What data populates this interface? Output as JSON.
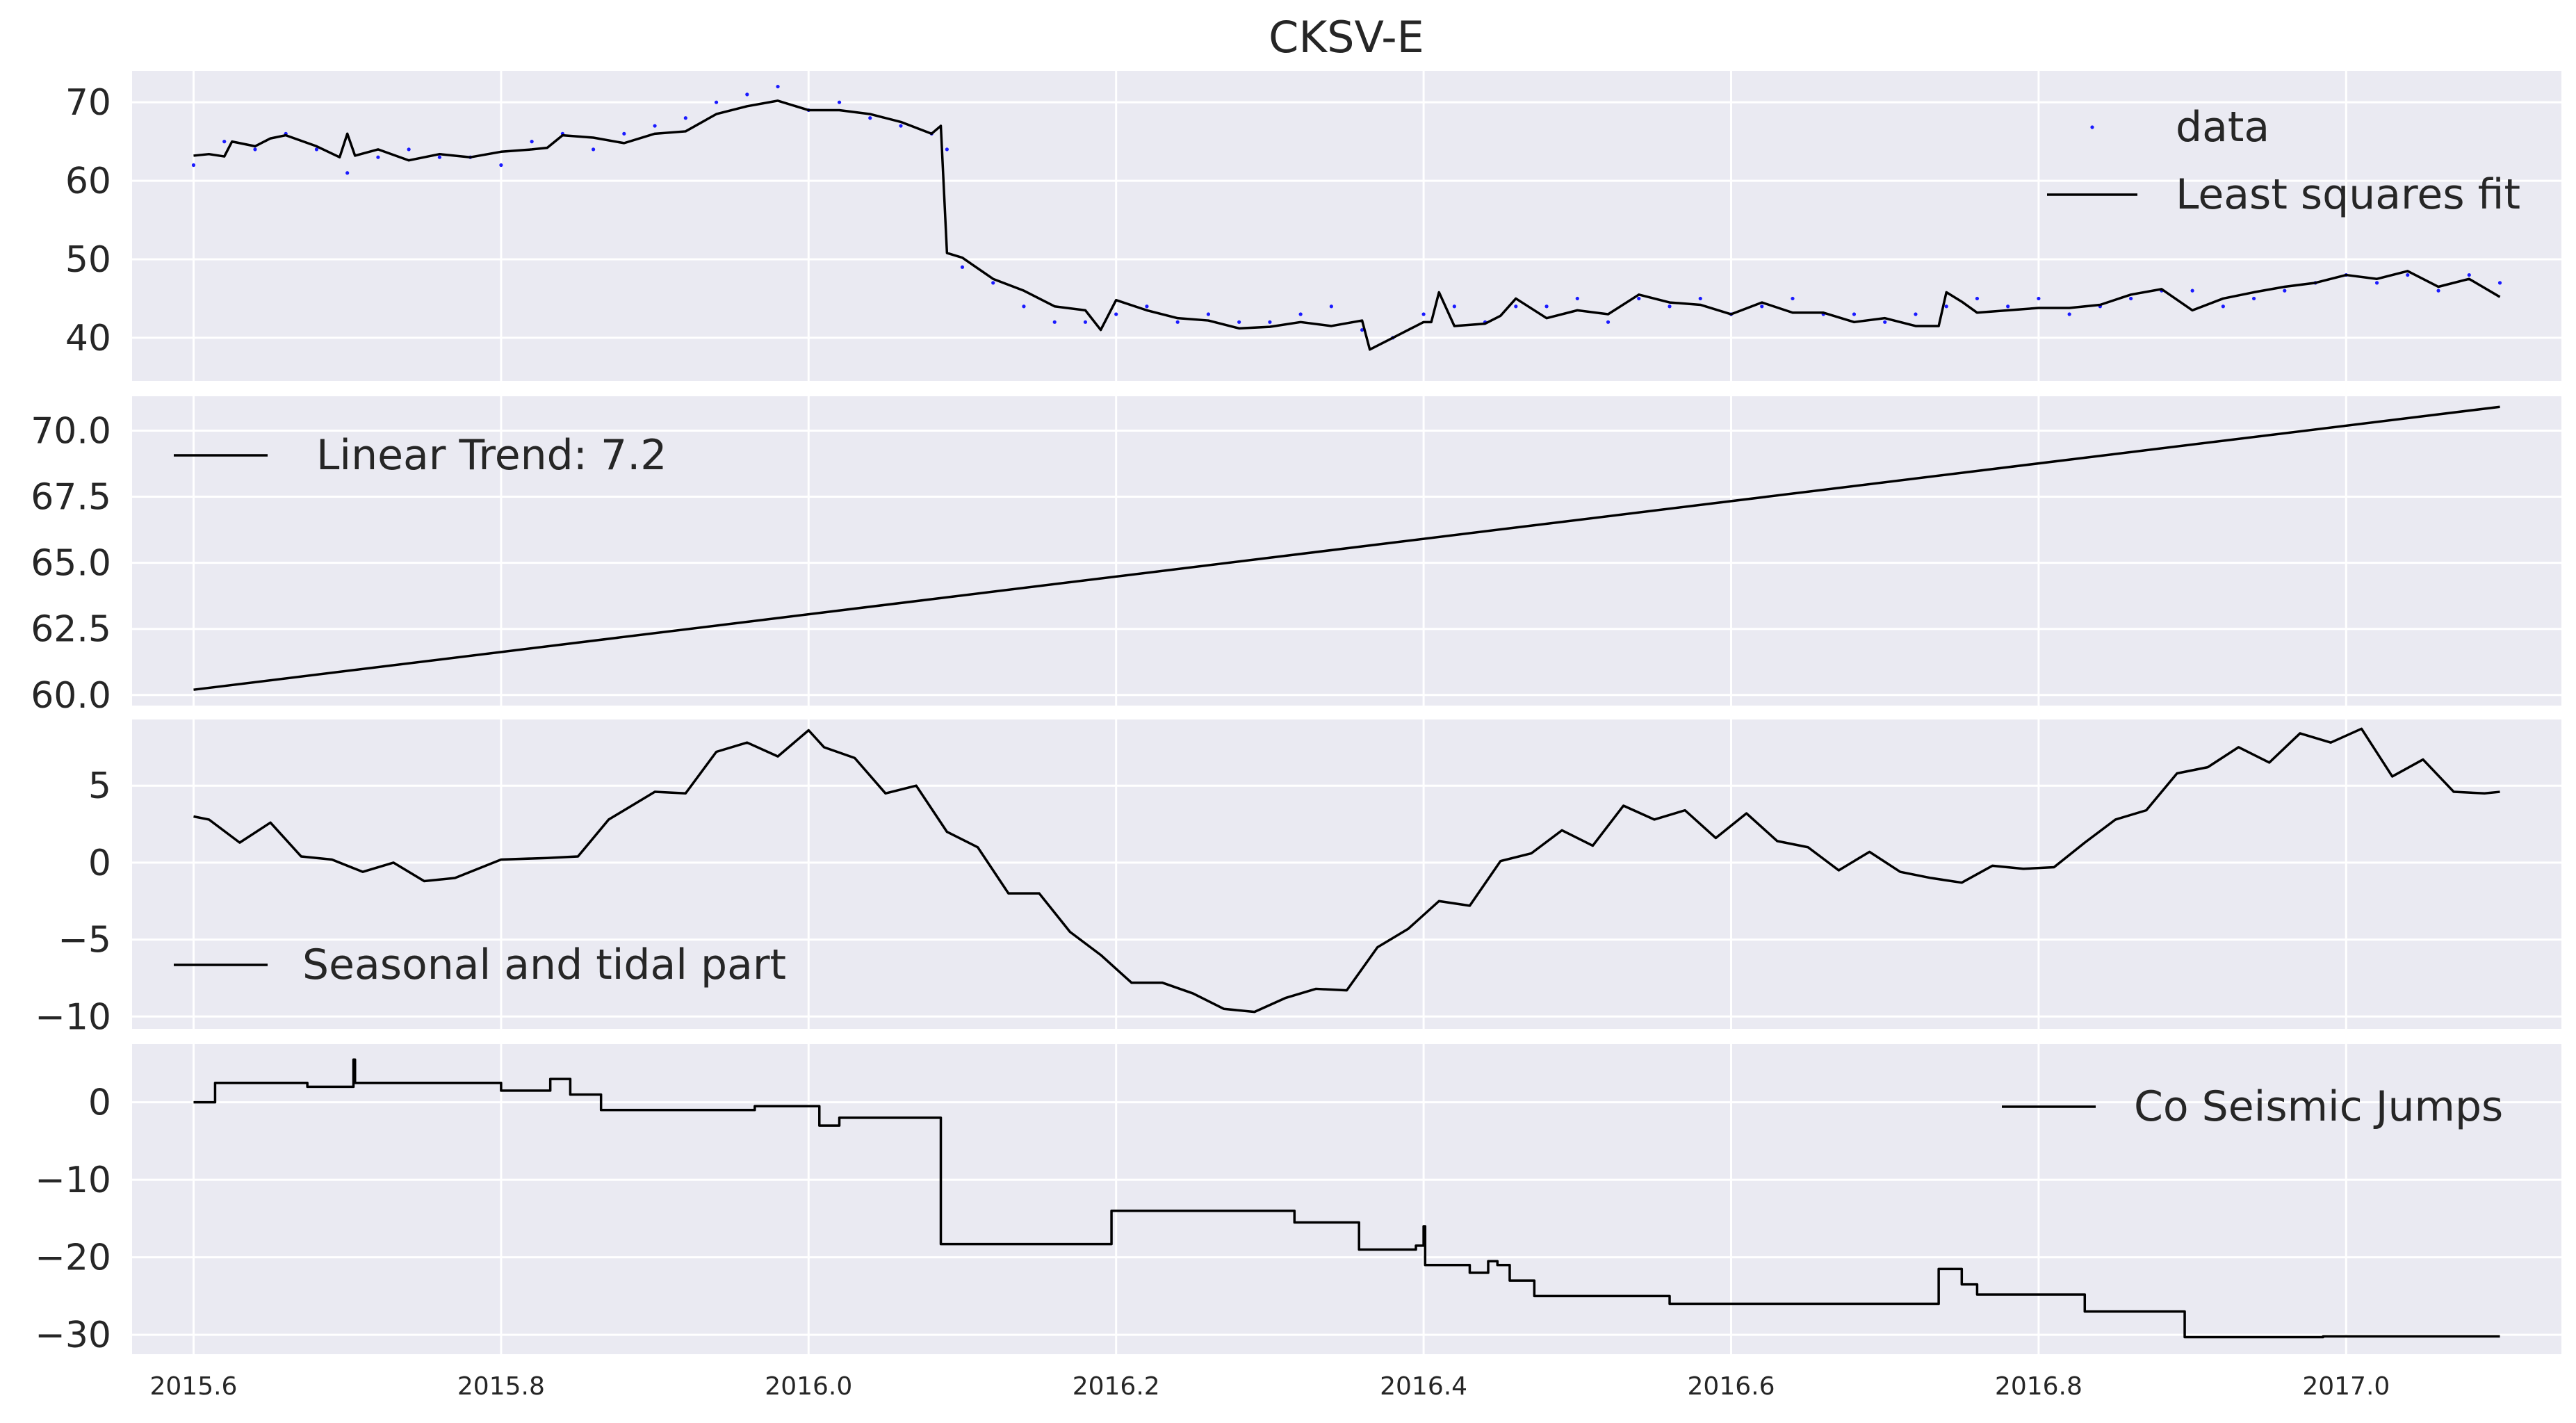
{
  "title": "CKSV-E",
  "colors": {
    "panel_background": "#EAEAF2",
    "grid": "#FFFFFF",
    "line": "#000000",
    "data_points": "#0000FF"
  },
  "chart_data": [
    {
      "type": "scatter",
      "id": "fit",
      "title": "CKSV-E",
      "xlim": [
        2015.56,
        2017.14
      ],
      "ylim": [
        34.5,
        74
      ],
      "x_ticks": [
        2015.6,
        2015.8,
        2016.0,
        2016.2,
        2016.4,
        2016.6,
        2016.8,
        2017.0
      ],
      "x_tick_labels": [
        "2015.6",
        "2015.8",
        "2016.0",
        "2016.2",
        "2016.4",
        "2016.6",
        "2016.8",
        "2017.0"
      ],
      "y_ticks": [
        40,
        50,
        60,
        70
      ],
      "y_tick_labels": [
        "40",
        "50",
        "60",
        "70"
      ],
      "grid": true,
      "legend": "upper right",
      "series": [
        {
          "name": "data",
          "kind": "scatter",
          "x": [
            2015.6,
            2015.62,
            2015.64,
            2015.66,
            2015.68,
            2015.7,
            2015.72,
            2015.74,
            2015.76,
            2015.78,
            2015.8,
            2015.82,
            2015.84,
            2015.86,
            2015.88,
            2015.9,
            2015.92,
            2015.94,
            2015.96,
            2015.98,
            2016.0,
            2016.02,
            2016.04,
            2016.06,
            2016.08,
            2016.09,
            2016.1,
            2016.12,
            2016.14,
            2016.16,
            2016.18,
            2016.2,
            2016.22,
            2016.24,
            2016.26,
            2016.28,
            2016.3,
            2016.32,
            2016.34,
            2016.36,
            2016.38,
            2016.4,
            2016.42,
            2016.44,
            2016.46,
            2016.48,
            2016.5,
            2016.52,
            2016.54,
            2016.56,
            2016.58,
            2016.6,
            2016.62,
            2016.64,
            2016.66,
            2016.68,
            2016.7,
            2016.72,
            2016.74,
            2016.76,
            2016.78,
            2016.8,
            2016.82,
            2016.84,
            2016.86,
            2016.88,
            2016.9,
            2016.92,
            2016.94,
            2016.96,
            2016.98,
            2017.0,
            2017.02,
            2017.04,
            2017.06,
            2017.08,
            2017.1
          ],
          "y": [
            62,
            65,
            64,
            66,
            64,
            61,
            63,
            64,
            63,
            63,
            62,
            65,
            66,
            64,
            66,
            67,
            68,
            70,
            71,
            72,
            69,
            70,
            68,
            67,
            66,
            64,
            49,
            47,
            44,
            42,
            42,
            43,
            44,
            42,
            43,
            42,
            42,
            43,
            44,
            41,
            40,
            43,
            44,
            42,
            44,
            44,
            45,
            42,
            45,
            44,
            45,
            43,
            44,
            45,
            43,
            43,
            42,
            43,
            44,
            45,
            44,
            45,
            43,
            44,
            45,
            46,
            46,
            44,
            45,
            46,
            47,
            48,
            47,
            48,
            46,
            48,
            47
          ]
        },
        {
          "name": "Least squares fit",
          "kind": "line",
          "x": [
            2015.6,
            2015.61,
            2015.62,
            2015.625,
            2015.64,
            2015.65,
            2015.66,
            2015.68,
            2015.695,
            2015.7,
            2015.705,
            2015.72,
            2015.74,
            2015.76,
            2015.78,
            2015.8,
            2015.82,
            2015.83,
            2015.84,
            2015.86,
            2015.88,
            2015.9,
            2015.92,
            2015.94,
            2015.96,
            2015.98,
            2016.0,
            2016.02,
            2016.04,
            2016.06,
            2016.08,
            2016.086,
            2016.09,
            2016.1,
            2016.12,
            2016.14,
            2016.16,
            2016.18,
            2016.19,
            2016.2,
            2016.22,
            2016.24,
            2016.26,
            2016.28,
            2016.3,
            2016.32,
            2016.34,
            2016.36,
            2016.365,
            2016.38,
            2016.4,
            2016.405,
            2016.41,
            2016.42,
            2016.44,
            2016.45,
            2016.46,
            2016.48,
            2016.5,
            2016.52,
            2016.54,
            2016.56,
            2016.58,
            2016.6,
            2016.62,
            2016.64,
            2016.66,
            2016.68,
            2016.7,
            2016.72,
            2016.735,
            2016.74,
            2016.75,
            2016.76,
            2016.78,
            2016.8,
            2016.82,
            2016.84,
            2016.86,
            2016.88,
            2016.9,
            2016.92,
            2016.94,
            2016.96,
            2016.98,
            2017.0,
            2017.02,
            2017.04,
            2017.06,
            2017.08,
            2017.1
          ],
          "y": [
            63.2,
            63.4,
            63.1,
            65.0,
            64.4,
            65.4,
            65.8,
            64.4,
            63.0,
            66.0,
            63.2,
            64.0,
            62.6,
            63.4,
            63.0,
            63.7,
            64.0,
            64.2,
            65.8,
            65.5,
            64.8,
            66.0,
            66.3,
            68.5,
            69.5,
            70.2,
            69.0,
            69.0,
            68.5,
            67.5,
            66.0,
            67.0,
            50.8,
            50.2,
            47.5,
            46.0,
            44.0,
            43.5,
            41.0,
            44.8,
            43.5,
            42.5,
            42.2,
            41.2,
            41.4,
            42.0,
            41.5,
            42.2,
            38.5,
            40.0,
            42.0,
            42.0,
            45.8,
            41.5,
            41.8,
            42.8,
            45.0,
            42.5,
            43.5,
            43.0,
            45.5,
            44.5,
            44.2,
            43.0,
            44.5,
            43.2,
            43.2,
            42.0,
            42.5,
            41.5,
            41.5,
            45.8,
            44.6,
            43.2,
            43.5,
            43.8,
            43.8,
            44.2,
            45.5,
            46.2,
            43.5,
            45.0,
            45.8,
            46.5,
            47.0,
            48.0,
            47.5,
            48.5,
            46.5,
            47.5,
            45.2
          ]
        }
      ]
    },
    {
      "type": "line",
      "id": "trend",
      "xlim": [
        2015.56,
        2017.14
      ],
      "ylim": [
        59.6,
        71.3
      ],
      "x_ticks": [
        2015.6,
        2015.8,
        2016.0,
        2016.2,
        2016.4,
        2016.6,
        2016.8,
        2017.0
      ],
      "y_ticks": [
        60.0,
        62.5,
        65.0,
        67.5,
        70.0
      ],
      "y_tick_labels": [
        "60.0",
        "62.5",
        "65.0",
        "67.5",
        "70.0"
      ],
      "grid": true,
      "legend": "upper left",
      "series": [
        {
          "name": "Linear Trend: 7.2",
          "x": [
            2015.6,
            2017.1
          ],
          "y": [
            60.2,
            70.9
          ]
        }
      ]
    },
    {
      "type": "line",
      "id": "seasonal",
      "xlim": [
        2015.56,
        2017.14
      ],
      "ylim": [
        -10.8,
        9.3
      ],
      "x_ticks": [
        2015.6,
        2015.8,
        2016.0,
        2016.2,
        2016.4,
        2016.6,
        2016.8,
        2017.0
      ],
      "y_ticks": [
        -10,
        -5,
        0,
        5
      ],
      "y_tick_labels": [
        "−10",
        "−5",
        "0",
        "5"
      ],
      "grid": true,
      "legend": "center left",
      "series": [
        {
          "name": "Seasonal and tidal part",
          "x": [
            2015.6,
            2015.61,
            2015.63,
            2015.65,
            2015.67,
            2015.69,
            2015.71,
            2015.73,
            2015.75,
            2015.77,
            2015.8,
            2015.83,
            2015.85,
            2015.87,
            2015.9,
            2015.92,
            2015.94,
            2015.96,
            2015.98,
            2016.0,
            2016.01,
            2016.03,
            2016.05,
            2016.07,
            2016.09,
            2016.11,
            2016.13,
            2016.15,
            2016.17,
            2016.19,
            2016.21,
            2016.23,
            2016.25,
            2016.27,
            2016.29,
            2016.31,
            2016.33,
            2016.35,
            2016.37,
            2016.39,
            2016.41,
            2016.43,
            2016.45,
            2016.47,
            2016.49,
            2016.51,
            2016.53,
            2016.55,
            2016.57,
            2016.59,
            2016.61,
            2016.63,
            2016.65,
            2016.67,
            2016.69,
            2016.71,
            2016.73,
            2016.75,
            2016.77,
            2016.79,
            2016.81,
            2016.83,
            2016.85,
            2016.87,
            2016.89,
            2016.91,
            2016.93,
            2016.95,
            2016.97,
            2016.99,
            2017.01,
            2017.03,
            2017.05,
            2017.07,
            2017.09,
            2017.1
          ],
          "y": [
            3.0,
            2.8,
            1.3,
            2.6,
            0.4,
            0.2,
            -0.6,
            0.0,
            -1.2,
            -1.0,
            0.2,
            0.3,
            0.4,
            2.8,
            4.6,
            4.5,
            7.2,
            7.8,
            6.9,
            8.6,
            7.5,
            6.8,
            4.5,
            5.0,
            2.0,
            1.0,
            -2.0,
            -2.0,
            -4.5,
            -6.0,
            -7.8,
            -7.8,
            -8.5,
            -9.5,
            -9.7,
            -8.8,
            -8.2,
            -8.3,
            -5.5,
            -4.3,
            -2.5,
            -2.8,
            0.1,
            0.6,
            2.1,
            1.1,
            3.7,
            2.8,
            3.4,
            1.6,
            3.2,
            1.4,
            1.0,
            -0.5,
            0.7,
            -0.6,
            -1.0,
            -1.3,
            -0.2,
            -0.4,
            -0.3,
            1.3,
            2.8,
            3.4,
            5.8,
            6.2,
            7.5,
            6.5,
            8.4,
            7.8,
            8.7,
            5.6,
            6.7,
            4.6,
            4.5,
            4.6
          ]
        }
      ]
    },
    {
      "type": "line",
      "id": "jumps",
      "xlim": [
        2015.56,
        2017.14
      ],
      "ylim": [
        -32.5,
        7.5
      ],
      "x_ticks": [
        2015.6,
        2015.8,
        2016.0,
        2016.2,
        2016.4,
        2016.6,
        2016.8,
        2017.0
      ],
      "x_tick_labels": [
        "2015.6",
        "2015.8",
        "2016.0",
        "2016.2",
        "2016.4",
        "2016.6",
        "2016.8",
        "2017.0"
      ],
      "y_ticks": [
        -30,
        -20,
        -10,
        0
      ],
      "y_tick_labels": [
        "−30",
        "−20",
        "−10",
        "0"
      ],
      "grid": true,
      "legend": "upper right",
      "series": [
        {
          "name": "Co Seismic Jumps",
          "step": true,
          "x": [
            2015.6,
            2015.614,
            2015.674,
            2015.704,
            2015.705,
            2015.706,
            2015.8,
            2015.832,
            2015.845,
            2015.865,
            2015.965,
            2016.007,
            2016.02,
            2016.086,
            2016.197,
            2016.316,
            2016.358,
            2016.395,
            2016.4,
            2016.401,
            2016.43,
            2016.442,
            2016.448,
            2016.456,
            2016.472,
            2016.56,
            2016.735,
            2016.75,
            2016.76,
            2016.83,
            2016.895,
            2016.985,
            2017.1
          ],
          "y": [
            0,
            2.5,
            2,
            5.5,
            2.5,
            2.5,
            1.5,
            3,
            1,
            -1,
            -0.5,
            -3,
            -2,
            -18.3,
            -14,
            -15.5,
            -19,
            -18.5,
            -16,
            -21,
            -22,
            -20.5,
            -21,
            -23,
            -25,
            -26,
            -21.5,
            -23.5,
            -24.8,
            -27,
            -30.3,
            -30.2,
            -30.2
          ]
        }
      ]
    }
  ]
}
